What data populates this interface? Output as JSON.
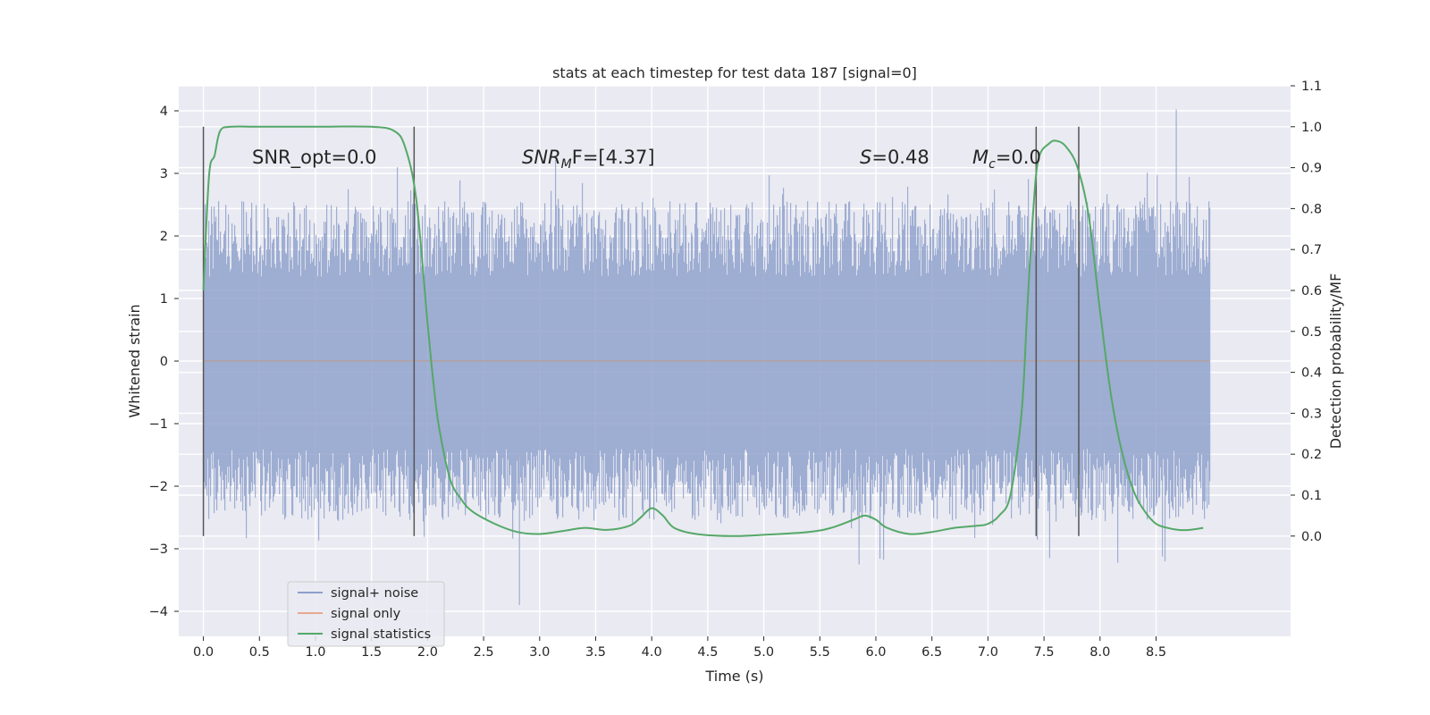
{
  "chart_data": {
    "type": "line",
    "title": "stats at each timestep for test data 187 [signal=0]",
    "xlabel": "Time (s)",
    "ylabel": "Whitened strain",
    "y2label": "Detection probability/MF",
    "xlim": [
      -0.22,
      9.7
    ],
    "ylim": [
      -4.4,
      4.4
    ],
    "y2lim": [
      -0.245,
      1.1
    ],
    "xticks": [
      0.0,
      0.5,
      1.0,
      1.5,
      2.0,
      2.5,
      3.0,
      3.5,
      4.0,
      4.5,
      5.0,
      5.5,
      6.0,
      6.5,
      7.0,
      7.5,
      8.0,
      8.5
    ],
    "xtick_labels": [
      "0.0",
      "0.5",
      "1.0",
      "1.5",
      "2.0",
      "2.5",
      "3.0",
      "3.5",
      "4.0",
      "4.5",
      "5.0",
      "5.5",
      "6.0",
      "6.5",
      "7.0",
      "7.5",
      "8.0",
      "8.5"
    ],
    "yticks": [
      4,
      3,
      2,
      1,
      0,
      -1,
      -2,
      -3,
      -4
    ],
    "ytick_labels": [
      "4",
      "3",
      "2",
      "1",
      "0",
      "−1",
      "−2",
      "−3",
      "−4"
    ],
    "y2ticks": [
      1.1,
      1.0,
      0.9,
      0.8,
      0.7,
      0.6,
      0.5,
      0.4,
      0.3,
      0.2,
      0.1,
      0.0
    ],
    "y2tick_labels": [
      "1.1",
      "1.0",
      "0.9",
      "0.8",
      "0.7",
      "0.6",
      "0.5",
      "0.4",
      "0.3",
      "0.2",
      "0.1",
      "0.0"
    ],
    "grid": true,
    "noise": {
      "t_start": 0.0,
      "t_end": 8.98,
      "core_band": [
        -1.4,
        1.35
      ],
      "typical_extreme": 2.5,
      "max": 4.02,
      "min": -3.9,
      "color": "#8da0cb"
    },
    "series": [
      {
        "name": "signal+ noise",
        "color": "#8da0cb",
        "axis": "left",
        "description": "whitened strain noise from 0.0 to 8.98 s"
      },
      {
        "name": "signal only",
        "color": "#e8a98d",
        "axis": "left",
        "x": [
          0.0,
          8.98
        ],
        "y": [
          0.0,
          0.0
        ]
      },
      {
        "name": "signal statistics",
        "color": "#55a868",
        "axis": "right",
        "x": [
          0.0,
          0.05,
          0.1,
          0.15,
          0.25,
          0.5,
          1.0,
          1.5,
          1.7,
          1.8,
          1.9,
          2.0,
          2.05,
          2.1,
          2.2,
          2.3,
          2.4,
          2.6,
          2.8,
          3.0,
          3.2,
          3.4,
          3.6,
          3.8,
          3.9,
          4.0,
          4.1,
          4.2,
          4.4,
          4.7,
          5.0,
          5.4,
          5.6,
          5.8,
          5.9,
          6.0,
          6.1,
          6.3,
          6.5,
          6.7,
          6.9,
          7.0,
          7.1,
          7.2,
          7.3,
          7.35,
          7.4,
          7.45,
          7.55,
          7.62,
          7.7,
          7.8,
          7.9,
          8.0,
          8.1,
          8.2,
          8.3,
          8.4,
          8.5,
          8.6,
          8.7,
          8.8,
          8.92
        ],
        "y": [
          0.6,
          0.88,
          0.93,
          0.99,
          1.0,
          1.0,
          1.0,
          1.0,
          0.99,
          0.95,
          0.82,
          0.52,
          0.38,
          0.27,
          0.14,
          0.09,
          0.06,
          0.03,
          0.01,
          0.005,
          0.012,
          0.02,
          0.015,
          0.025,
          0.045,
          0.068,
          0.05,
          0.02,
          0.005,
          0.0,
          0.003,
          0.01,
          0.02,
          0.04,
          0.05,
          0.04,
          0.02,
          0.005,
          0.01,
          0.02,
          0.025,
          0.03,
          0.05,
          0.1,
          0.3,
          0.55,
          0.78,
          0.92,
          0.96,
          0.965,
          0.95,
          0.9,
          0.78,
          0.55,
          0.34,
          0.2,
          0.11,
          0.06,
          0.03,
          0.02,
          0.015,
          0.015,
          0.02
        ]
      }
    ],
    "vlines": [
      0.0,
      1.88,
      7.43,
      7.81
    ],
    "vline_color": "#555555",
    "annotations": {
      "snr_opt": "SNR_opt=0.0",
      "snr_mf_main": "SNR",
      "snr_mf_sub": "M",
      "snr_mf_rest": "F=[4.37]",
      "s_var": "S",
      "s_rest": "=0.48",
      "mc_main": "M",
      "mc_sub": "c",
      "mc_rest": "=0.0"
    },
    "legend": {
      "location": "lower-left",
      "entries": [
        {
          "label": "signal+ noise",
          "color": "#8da0cb"
        },
        {
          "label": "signal only",
          "color": "#e8a98d"
        },
        {
          "label": "signal statistics",
          "color": "#55a868"
        }
      ]
    },
    "colors": {
      "plot_background": "#eaeaf2",
      "grid": "#ffffff",
      "text": "#262626"
    }
  }
}
